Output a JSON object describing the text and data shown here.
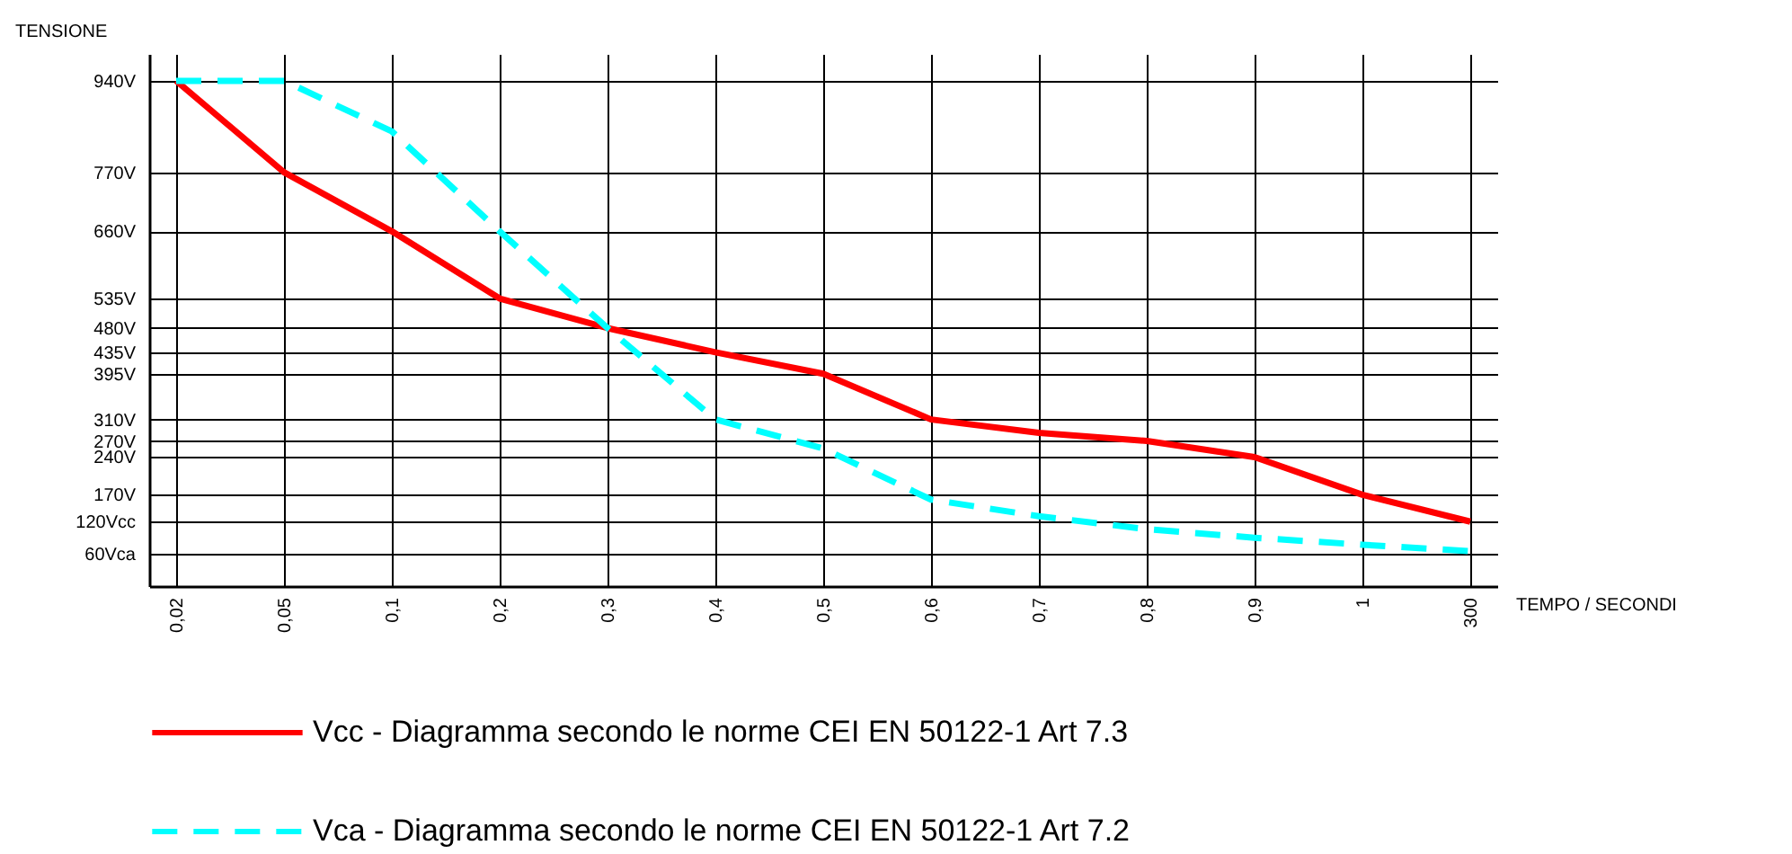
{
  "chart_data": {
    "type": "line",
    "xlabel": "TEMPO / SECONDI",
    "ylabel": "TENSIONE",
    "categories": [
      "0,02",
      "0,05",
      "0,1",
      "0,2",
      "0,3",
      "0,4",
      "0,5",
      "0,6",
      "0,7",
      "0,8",
      "0,9",
      "1",
      "300"
    ],
    "ylim": [
      0,
      990
    ],
    "yticks": [
      {
        "value": 60,
        "label": "60Vca"
      },
      {
        "value": 120,
        "label": "120Vcc"
      },
      {
        "value": 170,
        "label": "170V"
      },
      {
        "value": 240,
        "label": "240V"
      },
      {
        "value": 270,
        "label": "270V"
      },
      {
        "value": 310,
        "label": "310V"
      },
      {
        "value": 395,
        "label": "395V"
      },
      {
        "value": 435,
        "label": "435V"
      },
      {
        "value": 480,
        "label": "480V"
      },
      {
        "value": 535,
        "label": "535V"
      },
      {
        "value": 660,
        "label": "660V"
      },
      {
        "value": 770,
        "label": "770V"
      },
      {
        "value": 940,
        "label": "940V"
      }
    ],
    "grid": true,
    "legend": "bottom",
    "series": [
      {
        "name": "Vcc - Diagramma secondo le norme CEI EN 50122-1 Art 7.3",
        "color": "#ff0000",
        "line_style": "solid",
        "values": [
          940,
          770,
          660,
          535,
          480,
          435,
          395,
          310,
          285,
          270,
          240,
          170,
          120
        ]
      },
      {
        "name": "Vca - Diagramma secondo le norme CEI EN 50122-1 Art 7.2",
        "color": "#00ffff",
        "line_style": "dashed",
        "values": [
          940,
          940,
          846,
          660,
          480,
          310,
          256,
          161,
          130,
          106,
          90,
          77,
          65
        ]
      }
    ]
  }
}
